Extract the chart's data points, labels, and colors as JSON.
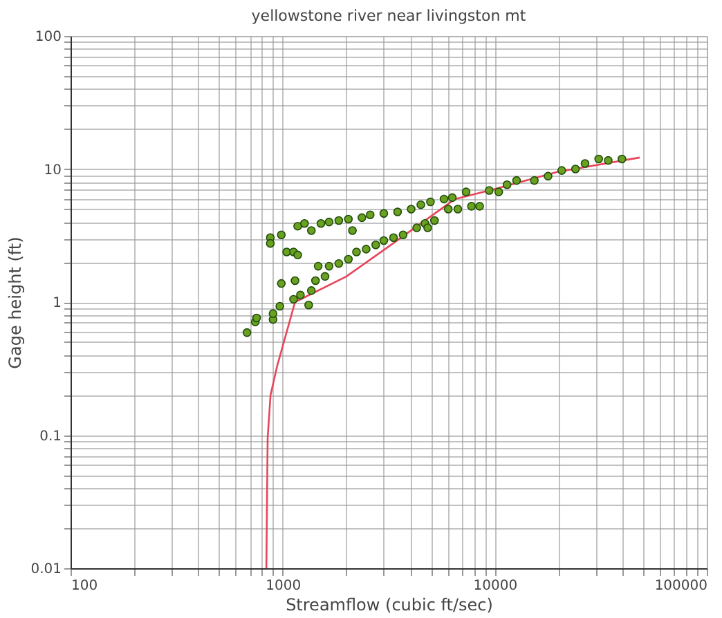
{
  "chart_data": {
    "type": "scatter",
    "title": "yellowstone river near livingston mt",
    "xlabel": "Streamflow (cubic ft/sec)",
    "ylabel": "Gage height (ft)",
    "log": "xy",
    "grid": true,
    "marker": "circle",
    "xlim": [
      100,
      100000
    ],
    "ylim": [
      0.01,
      100
    ],
    "xticks": [
      100,
      {
        "value": 200,
        "label": null
      },
      {
        "value": 300,
        "label": null
      },
      {
        "value": 400,
        "label": null
      },
      {
        "value": 500,
        "label": null
      },
      {
        "value": 600,
        "label": null
      },
      {
        "value": 700,
        "label": null
      },
      {
        "value": 800,
        "label": null
      },
      {
        "value": 900,
        "label": null
      },
      1000,
      {
        "value": 2000,
        "label": null
      },
      {
        "value": 3000,
        "label": null
      },
      {
        "value": 4000,
        "label": null
      },
      {
        "value": 5000,
        "label": null
      },
      {
        "value": 6000,
        "label": null
      },
      {
        "value": 7000,
        "label": null
      },
      {
        "value": 8000,
        "label": null
      },
      {
        "value": 9000,
        "label": null
      },
      10000,
      {
        "value": 20000,
        "label": null
      },
      {
        "value": 30000,
        "label": null
      },
      {
        "value": 40000,
        "label": null
      },
      {
        "value": 50000,
        "label": null
      },
      {
        "value": 60000,
        "label": null
      },
      {
        "value": 70000,
        "label": null
      },
      {
        "value": 80000,
        "label": null
      },
      {
        "value": 90000,
        "label": null
      },
      100000
    ],
    "yticks": [
      0.01,
      {
        "value": 0.02,
        "label": null
      },
      {
        "value": 0.03,
        "label": null
      },
      {
        "value": 0.04,
        "label": null
      },
      {
        "value": 0.05,
        "label": null
      },
      {
        "value": 0.06,
        "label": null
      },
      {
        "value": 0.07,
        "label": null
      },
      {
        "value": 0.08,
        "label": null
      },
      {
        "value": 0.09,
        "label": null
      },
      0.1,
      {
        "value": 0.2,
        "label": null
      },
      {
        "value": 0.3,
        "label": null
      },
      {
        "value": 0.4,
        "label": null
      },
      {
        "value": 0.5,
        "label": null
      },
      {
        "value": 0.6,
        "label": null
      },
      {
        "value": 0.7,
        "label": null
      },
      {
        "value": 0.8,
        "label": null
      },
      {
        "value": 0.9,
        "label": null
      },
      1,
      {
        "value": 2,
        "label": null
      },
      {
        "value": 3,
        "label": null
      },
      {
        "value": 4,
        "label": null
      },
      {
        "value": 5,
        "label": null
      },
      {
        "value": 6,
        "label": null
      },
      {
        "value": 7,
        "label": null
      },
      {
        "value": 8,
        "label": null
      },
      {
        "value": 9,
        "label": null
      },
      10,
      {
        "value": 20,
        "label": null
      },
      {
        "value": 30,
        "label": null
      },
      {
        "value": 40,
        "label": null
      },
      {
        "value": 50,
        "label": null
      },
      {
        "value": 60,
        "label": null
      },
      {
        "value": 70,
        "label": null
      },
      {
        "value": 80,
        "label": null
      },
      {
        "value": 90,
        "label": null
      },
      100
    ],
    "series": [
      {
        "type": "line",
        "color": "#e8455a",
        "line_style": "solid",
        "marker": "none",
        "x": [
          838,
          850,
          877,
          942,
          1144,
          2000,
          3040,
          6500,
          10000,
          19700,
          48300
        ],
        "values": [
          0.01,
          0.095,
          0.2,
          0.33,
          1,
          1.56,
          2.5,
          5.95,
          7.07,
          9.5,
          12.2
        ]
      },
      {
        "color": "#6aa121",
        "x": [
          679,
          743,
          754,
          901,
          901,
          970,
          986,
          1126,
          1144,
          1213,
          1327,
          1366,
          1429,
          1471,
          1585,
          1656,
          1840,
          2042,
          2230,
          2477,
          2748,
          3000,
          3334,
          3698,
          4288,
          4690,
          4830,
          5200,
          6040,
          6700,
          7770,
          8490,
          875,
          875,
          986,
          1045,
          1126,
          1178,
          1178,
          1268,
          1366,
          1516,
          1656,
          1840,
          2042,
          2134,
          2366,
          2588,
          3000,
          3484,
          4038,
          4485,
          4977,
          5768,
          6310,
          7330,
          9420,
          10450,
          11430,
          12680,
          15380,
          17850,
          20710,
          24040,
          26670,
          30930,
          34300,
          39810
        ],
        "values": [
          0.59,
          0.71,
          0.76,
          0.74,
          0.82,
          0.93,
          1.38,
          1.05,
          1.45,
          1.13,
          0.95,
          1.22,
          1.45,
          1.86,
          1.56,
          1.86,
          1.95,
          2.1,
          2.38,
          2.5,
          2.69,
          2.9,
          3.05,
          3.2,
          3.62,
          3.9,
          3.62,
          4.1,
          5.0,
          5.0,
          5.25,
          5.25,
          3.05,
          2.76,
          3.2,
          2.38,
          2.38,
          2.26,
          3.72,
          3.9,
          3.45,
          3.9,
          4.0,
          4.1,
          4.2,
          3.45,
          4.31,
          4.53,
          4.64,
          4.76,
          5.0,
          5.39,
          5.66,
          5.95,
          6.1,
          6.73,
          6.9,
          6.73,
          7.62,
          8.2,
          8.2,
          8.83,
          9.75,
          10,
          11,
          11.9,
          11.6,
          11.9
        ]
      }
    ]
  }
}
